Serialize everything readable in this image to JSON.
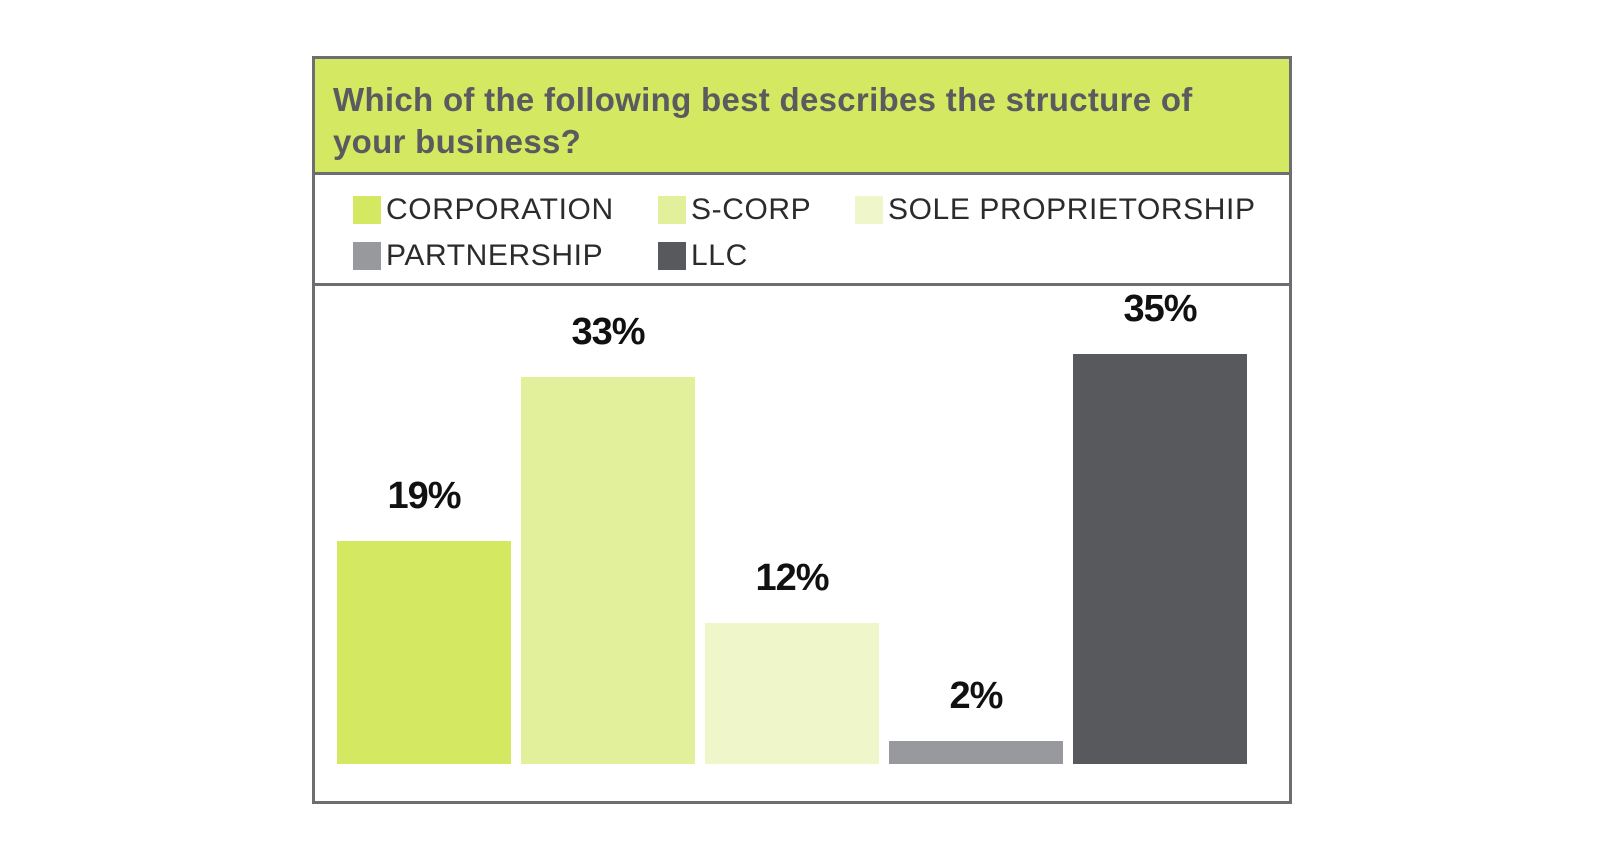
{
  "chart_data": {
    "type": "bar",
    "title": "Which of the following best describes the structure of your business?",
    "categories": [
      "CORPORATION",
      "S-CORP",
      "SOLE PROPRIETORSHIP",
      "PARTNERSHIP",
      "LLC"
    ],
    "values": [
      19,
      33,
      12,
      2,
      35
    ],
    "data_labels": [
      "19%",
      "33%",
      "12%",
      "2%",
      "35%"
    ],
    "colors": [
      "#d4e862",
      "#e3f09b",
      "#eff7ca",
      "#97999c",
      "#58595d"
    ],
    "ylim": [
      0,
      35
    ],
    "grid": false,
    "legend_position": "top"
  },
  "legend": {
    "items": [
      {
        "label": "CORPORATION",
        "color": "#d4e862"
      },
      {
        "label": "S-CORP",
        "color": "#e3f09b"
      },
      {
        "label": "SOLE PROPRIETORSHIP",
        "color": "#eff7ca"
      },
      {
        "label": "PARTNERSHIP",
        "color": "#97999c"
      },
      {
        "label": "LLC",
        "color": "#58595d"
      }
    ]
  },
  "colors": {
    "title_background": "#d4e862",
    "title_text": "#5a5b5e",
    "frame_border": "#6d6e71"
  }
}
